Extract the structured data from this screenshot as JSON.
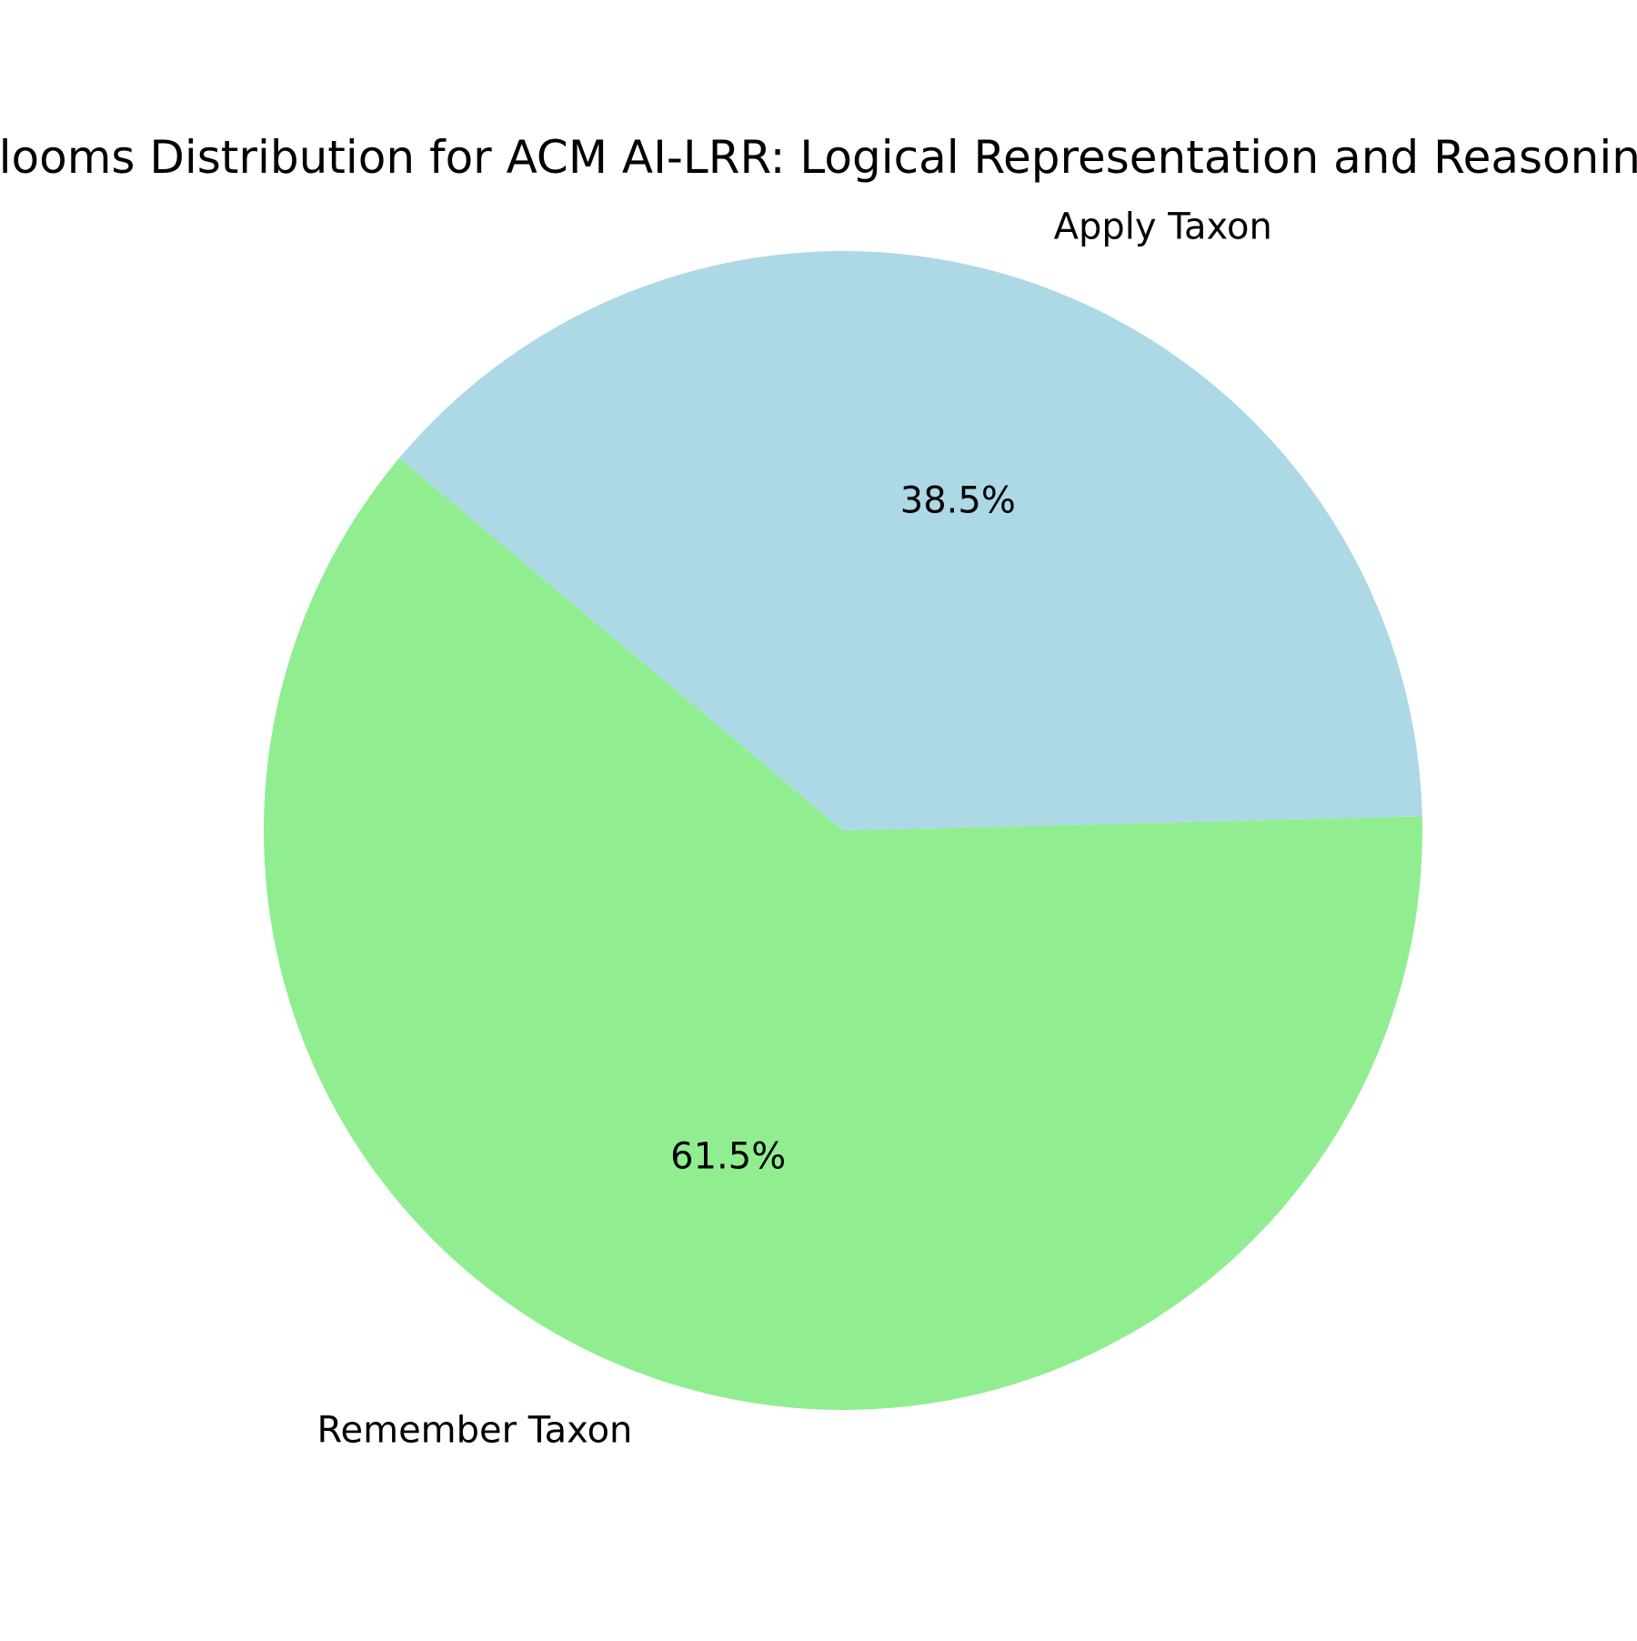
{
  "chart_data": {
    "type": "pie",
    "title": "Blooms Distribution for ACM AI-LRR: Logical Representation and Reasoning",
    "categories": [
      "Remember Taxon",
      "Apply Taxon"
    ],
    "values": [
      61.5,
      38.5
    ],
    "percent_labels": [
      "61.5%",
      "38.5%"
    ],
    "colors": [
      "#90ee90",
      "#add8e6"
    ],
    "start_angle_deg": 140,
    "direction": "counterclockwise",
    "legend": "none"
  }
}
